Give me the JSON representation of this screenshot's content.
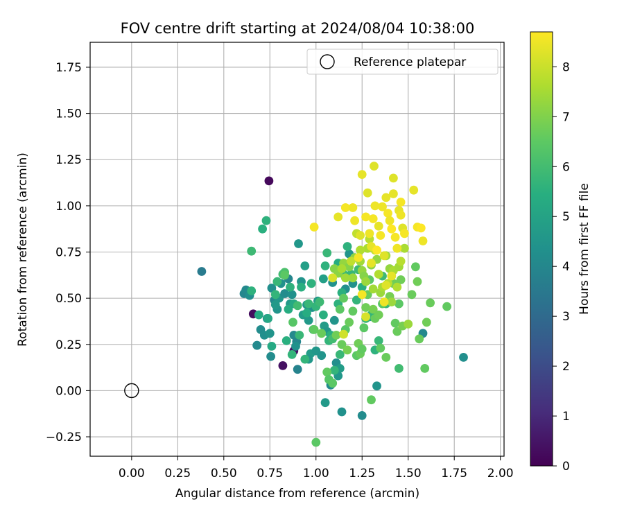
{
  "chart_data": {
    "type": "scatter",
    "title": "FOV centre drift starting at 2024/08/04 10:38:00",
    "xlabel": "Angular distance from reference (arcmin)",
    "ylabel": "Rotation from reference (arcmin)",
    "xlim": [
      -0.225,
      2.02
    ],
    "ylim": [
      -0.355,
      1.885
    ],
    "xticks": [
      0.0,
      0.25,
      0.5,
      0.75,
      1.0,
      1.25,
      1.5,
      1.75,
      2.0
    ],
    "xtick_labels": [
      "0.00",
      "0.25",
      "0.50",
      "0.75",
      "1.00",
      "1.25",
      "1.50",
      "1.75",
      "2.00"
    ],
    "yticks": [
      -0.25,
      0.0,
      0.25,
      0.5,
      0.75,
      1.0,
      1.25,
      1.5,
      1.75
    ],
    "ytick_labels": [
      "−0.25",
      "0.00",
      "0.25",
      "0.50",
      "0.75",
      "1.00",
      "1.25",
      "1.50",
      "1.75"
    ],
    "grid": true,
    "legend": {
      "position": "top-right",
      "entries": [
        "Reference platepar"
      ]
    },
    "reference_point": [
      0.0,
      0.0
    ],
    "colorbar": {
      "label": "Hours from first FF file",
      "colormap": "viridis",
      "range": [
        0,
        8.7
      ],
      "ticks": [
        0,
        1,
        2,
        3,
        4,
        5,
        6,
        7,
        8
      ],
      "tick_labels": [
        "0",
        "1",
        "2",
        "3",
        "4",
        "5",
        "6",
        "7",
        "8"
      ]
    },
    "points": [
      [
        0.745,
        1.135,
        0.2
      ],
      [
        0.66,
        0.415,
        0.3
      ],
      [
        0.82,
        0.135,
        0.4
      ],
      [
        0.88,
        0.215,
        0.4
      ],
      [
        0.38,
        0.645,
        3.6
      ],
      [
        0.61,
        0.525,
        4.0
      ],
      [
        0.62,
        0.545,
        4.1
      ],
      [
        0.64,
        0.515,
        4.3
      ],
      [
        0.68,
        0.245,
        4.0
      ],
      [
        0.7,
        0.33,
        4.2
      ],
      [
        0.72,
        0.3,
        4.3
      ],
      [
        0.735,
        0.39,
        4.4
      ],
      [
        0.755,
        0.185,
        4.2
      ],
      [
        0.76,
        0.555,
        4.3
      ],
      [
        0.775,
        0.49,
        4.1
      ],
      [
        0.79,
        0.44,
        4.5
      ],
      [
        0.8,
        0.5,
        4.6
      ],
      [
        0.81,
        0.58,
        4.4
      ],
      [
        0.83,
        0.525,
        4.2
      ],
      [
        0.85,
        0.605,
        4.0
      ],
      [
        0.86,
        0.47,
        4.7
      ],
      [
        0.87,
        0.52,
        4.4
      ],
      [
        0.88,
        0.3,
        4.1
      ],
      [
        0.895,
        0.265,
        4.0
      ],
      [
        0.9,
        0.115,
        3.9
      ],
      [
        0.905,
        0.795,
        4.6
      ],
      [
        0.92,
        0.59,
        4.5
      ],
      [
        0.93,
        0.41,
        4.8
      ],
      [
        0.94,
        0.675,
        4.9
      ],
      [
        0.95,
        0.465,
        4.6
      ],
      [
        0.96,
        0.38,
        4.7
      ],
      [
        0.97,
        0.2,
        4.8
      ],
      [
        0.98,
        0.45,
        4.4
      ],
      [
        1.0,
        0.215,
        4.6
      ],
      [
        1.01,
        0.485,
        4.7
      ],
      [
        1.03,
        0.19,
        4.5
      ],
      [
        1.04,
        0.605,
        4.9
      ],
      [
        1.045,
        0.35,
        4.8
      ],
      [
        1.05,
        -0.065,
        4.7
      ],
      [
        1.06,
        0.32,
        4.6
      ],
      [
        1.08,
        0.03,
        4.2
      ],
      [
        1.09,
        0.585,
        4.4
      ],
      [
        1.1,
        0.38,
        4.5
      ],
      [
        1.11,
        0.15,
        4.3
      ],
      [
        1.12,
        0.08,
        4.6
      ],
      [
        1.14,
        -0.115,
        4.4
      ],
      [
        1.16,
        0.55,
        4.3
      ],
      [
        1.18,
        0.74,
        4.5
      ],
      [
        1.2,
        0.58,
        4.4
      ],
      [
        1.25,
        -0.135,
        4.2
      ],
      [
        1.29,
        0.4,
        4.6
      ],
      [
        1.33,
        0.025,
        4.5
      ],
      [
        1.58,
        0.31,
        4.1
      ],
      [
        1.8,
        0.18,
        4.3
      ],
      [
        0.68,
        0.245,
        4.1
      ],
      [
        0.75,
        0.31,
        4.5
      ],
      [
        0.78,
        0.465,
        4.7
      ],
      [
        0.89,
        0.24,
        4.4
      ],
      [
        0.96,
        0.17,
        4.6
      ],
      [
        1.13,
        0.12,
        4.8
      ],
      [
        0.65,
        0.54,
        5.6
      ],
      [
        0.65,
        0.755,
        5.9
      ],
      [
        0.69,
        0.41,
        5.3
      ],
      [
        0.71,
        0.875,
        5.5
      ],
      [
        0.73,
        0.92,
        5.6
      ],
      [
        0.74,
        0.39,
        5.2
      ],
      [
        0.76,
        0.24,
        5.3
      ],
      [
        0.78,
        0.52,
        5.7
      ],
      [
        0.79,
        0.59,
        5.8
      ],
      [
        0.82,
        0.63,
        6.0
      ],
      [
        0.83,
        0.64,
        6.2
      ],
      [
        0.84,
        0.27,
        5.5
      ],
      [
        0.85,
        0.44,
        5.4
      ],
      [
        0.86,
        0.56,
        5.6
      ],
      [
        0.87,
        0.195,
        5.7
      ],
      [
        0.88,
        0.47,
        5.3
      ],
      [
        0.9,
        0.46,
        6.0
      ],
      [
        0.91,
        0.3,
        5.8
      ],
      [
        0.92,
        0.56,
        5.5
      ],
      [
        0.94,
        0.17,
        5.7
      ],
      [
        0.95,
        0.42,
        5.4
      ],
      [
        0.96,
        0.47,
        5.8
      ],
      [
        0.975,
        0.58,
        5.6
      ],
      [
        0.985,
        0.33,
        6.1
      ],
      [
        1.0,
        0.455,
        5.7
      ],
      [
        1.02,
        0.48,
        5.9
      ],
      [
        1.04,
        0.41,
        5.5
      ],
      [
        1.05,
        0.675,
        5.6
      ],
      [
        1.06,
        0.745,
        5.8
      ],
      [
        1.07,
        0.27,
        5.7
      ],
      [
        1.08,
        0.3,
        5.5
      ],
      [
        1.09,
        0.28,
        6.0
      ],
      [
        1.1,
        0.11,
        5.7
      ],
      [
        1.12,
        0.47,
        5.6
      ],
      [
        1.12,
        0.69,
        5.4
      ],
      [
        1.13,
        0.195,
        5.8
      ],
      [
        1.14,
        0.53,
        5.5
      ],
      [
        1.15,
        0.63,
        5.9
      ],
      [
        1.17,
        0.78,
        5.6
      ],
      [
        1.19,
        0.63,
        5.8
      ],
      [
        1.22,
        0.49,
        5.7
      ],
      [
        1.23,
        0.655,
        5.9
      ],
      [
        1.25,
        0.56,
        5.5
      ],
      [
        1.27,
        0.39,
        5.8
      ],
      [
        1.3,
        0.41,
        5.7
      ],
      [
        1.32,
        0.22,
        5.6
      ],
      [
        1.34,
        0.27,
        5.8
      ],
      [
        1.36,
        0.62,
        5.9
      ],
      [
        1.38,
        0.47,
        5.8
      ],
      [
        1.45,
        0.12,
        6.0
      ],
      [
        0.83,
        0.625,
        6.5
      ],
      [
        0.875,
        0.37,
        6.4
      ],
      [
        0.99,
        0.33,
        6.6
      ],
      [
        1.0,
        -0.28,
        6.5
      ],
      [
        1.03,
        0.31,
        6.7
      ],
      [
        1.06,
        0.1,
        6.6
      ],
      [
        1.07,
        0.06,
        6.4
      ],
      [
        1.09,
        0.04,
        6.5
      ],
      [
        1.11,
        0.3,
        6.8
      ],
      [
        1.13,
        0.44,
        6.5
      ],
      [
        1.14,
        0.25,
        6.7
      ],
      [
        1.15,
        0.5,
        6.6
      ],
      [
        1.16,
        0.33,
        6.4
      ],
      [
        1.17,
        0.22,
        6.9
      ],
      [
        1.18,
        0.37,
        6.7
      ],
      [
        1.2,
        0.43,
        6.6
      ],
      [
        1.22,
        0.19,
        6.5
      ],
      [
        1.23,
        0.255,
        6.8
      ],
      [
        1.24,
        0.2,
        6.7
      ],
      [
        1.25,
        0.225,
        6.6
      ],
      [
        1.26,
        0.34,
        6.5
      ],
      [
        1.27,
        0.45,
        6.8
      ],
      [
        1.28,
        0.52,
        6.7
      ],
      [
        1.29,
        0.6,
        6.5
      ],
      [
        1.3,
        -0.05,
        6.6
      ],
      [
        1.31,
        0.44,
        6.9
      ],
      [
        1.32,
        0.39,
        6.7
      ],
      [
        1.34,
        0.41,
        6.8
      ],
      [
        1.35,
        0.23,
        6.6
      ],
      [
        1.36,
        0.47,
        6.5
      ],
      [
        1.38,
        0.18,
        6.7
      ],
      [
        1.4,
        0.51,
        6.9
      ],
      [
        1.42,
        0.58,
        6.8
      ],
      [
        1.43,
        0.365,
        6.6
      ],
      [
        1.44,
        0.32,
        6.7
      ],
      [
        1.45,
        0.47,
        6.5
      ],
      [
        1.46,
        0.6,
        6.8
      ],
      [
        1.47,
        0.35,
        6.9
      ],
      [
        1.52,
        0.52,
        6.7
      ],
      [
        1.54,
        0.67,
        6.6
      ],
      [
        1.55,
        0.59,
        6.8
      ],
      [
        1.56,
        0.28,
        6.7
      ],
      [
        1.59,
        0.12,
        6.6
      ],
      [
        1.6,
        0.37,
        6.8
      ],
      [
        1.62,
        0.475,
        6.7
      ],
      [
        1.71,
        0.455,
        6.6
      ],
      [
        1.1,
        0.66,
        7.1
      ],
      [
        1.12,
        0.635,
        7.2
      ],
      [
        1.15,
        0.69,
        7.3
      ],
      [
        1.18,
        0.67,
        7.1
      ],
      [
        1.2,
        0.61,
        7.4
      ],
      [
        1.21,
        0.72,
        7.2
      ],
      [
        1.24,
        0.7,
        7.5
      ],
      [
        1.25,
        0.65,
        7.3
      ],
      [
        1.26,
        0.62,
        7.1
      ],
      [
        1.27,
        0.59,
        7.4
      ],
      [
        1.28,
        0.77,
        7.6
      ],
      [
        1.3,
        0.68,
        7.2
      ],
      [
        1.31,
        0.55,
        7.5
      ],
      [
        1.33,
        0.71,
        7.3
      ],
      [
        1.34,
        0.63,
        7.7
      ],
      [
        1.35,
        0.53,
        7.4
      ],
      [
        1.36,
        0.56,
        7.6
      ],
      [
        1.38,
        0.73,
        7.5
      ],
      [
        1.39,
        0.58,
        7.8
      ],
      [
        1.4,
        0.66,
        7.3
      ],
      [
        1.41,
        0.48,
        7.4
      ],
      [
        1.42,
        0.65,
        7.6
      ],
      [
        1.44,
        0.56,
        7.7
      ],
      [
        1.45,
        0.67,
        7.5
      ],
      [
        1.46,
        0.7,
        7.8
      ],
      [
        1.48,
        0.77,
        7.6
      ],
      [
        1.5,
        0.36,
        7.4
      ],
      [
        1.16,
        0.61,
        7.5
      ],
      [
        1.24,
        0.76,
        7.7
      ],
      [
        1.29,
        0.82,
        7.8
      ],
      [
        1.19,
        0.7,
        7.9
      ],
      [
        1.14,
        0.66,
        7.6
      ],
      [
        1.22,
        0.85,
        7.9
      ],
      [
        1.32,
        0.76,
        7.9
      ],
      [
        0.99,
        0.885,
        8.6
      ],
      [
        1.12,
        0.94,
        8.4
      ],
      [
        1.16,
        0.99,
        8.6
      ],
      [
        1.21,
        0.92,
        8.5
      ],
      [
        1.24,
        0.84,
        8.3
      ],
      [
        1.25,
        1.17,
        8.4
      ],
      [
        1.27,
        0.94,
        8.6
      ],
      [
        1.28,
        1.07,
        8.3
      ],
      [
        1.29,
        0.85,
        8.5
      ],
      [
        1.3,
        0.78,
        8.4
      ],
      [
        1.31,
        0.93,
        8.6
      ],
      [
        1.315,
        1.215,
        8.3
      ],
      [
        1.32,
        1.0,
        8.5
      ],
      [
        1.33,
        0.76,
        8.7
      ],
      [
        1.34,
        0.89,
        8.4
      ],
      [
        1.35,
        0.84,
        8.6
      ],
      [
        1.36,
        0.995,
        8.5
      ],
      [
        1.37,
        0.73,
        8.3
      ],
      [
        1.38,
        1.045,
        8.4
      ],
      [
        1.39,
        0.96,
        8.6
      ],
      [
        1.4,
        0.92,
        8.5
      ],
      [
        1.41,
        0.875,
        8.7
      ],
      [
        1.42,
        1.15,
        8.3
      ],
      [
        1.42,
        1.065,
        8.4
      ],
      [
        1.43,
        0.83,
        8.6
      ],
      [
        1.44,
        0.77,
        8.5
      ],
      [
        1.45,
        0.975,
        8.4
      ],
      [
        1.46,
        1.02,
        8.6
      ],
      [
        1.46,
        0.95,
        8.5
      ],
      [
        1.47,
        0.88,
        8.3
      ],
      [
        1.48,
        0.85,
        8.6
      ],
      [
        1.53,
        1.085,
        8.4
      ],
      [
        1.55,
        0.885,
        8.6
      ],
      [
        1.57,
        0.88,
        8.7
      ],
      [
        1.58,
        0.81,
        8.5
      ],
      [
        1.27,
        0.4,
        8.2
      ],
      [
        1.25,
        0.52,
        8.6
      ],
      [
        1.37,
        0.48,
        8.5
      ],
      [
        1.38,
        0.57,
        8.3
      ],
      [
        1.3,
        0.69,
        8.4
      ],
      [
        1.2,
        0.99,
        8.5
      ],
      [
        1.09,
        0.61,
        8.2
      ],
      [
        1.23,
        0.72,
        8.6
      ],
      [
        1.41,
        0.62,
        8.4
      ],
      [
        1.15,
        0.305,
        8.1
      ]
    ]
  }
}
